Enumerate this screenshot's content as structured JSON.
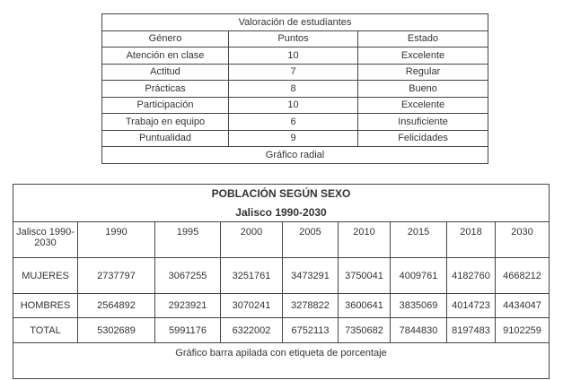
{
  "valoracion": {
    "title": "Valoración de estudiantes",
    "header": [
      "Género",
      "Puntos",
      "Estado"
    ],
    "rows": [
      [
        "Atención en clase",
        "10",
        "Excelente"
      ],
      [
        "Actitud",
        "7",
        "Regular"
      ],
      [
        "Prácticas",
        "8",
        "Bueno"
      ],
      [
        "Participación",
        "10",
        "Excelente"
      ],
      [
        "Trabajo en equipo",
        "6",
        "Insuficiente"
      ],
      [
        "Puntualidad",
        "9",
        "Felicidades"
      ]
    ],
    "footer": "Gráfico radial"
  },
  "poblacion": {
    "title": "POBLACIÓN SEGÚN SEXO",
    "subtitle": "Jalisco 1990-2030",
    "header": [
      "Jalisco 1990-2030",
      "1990",
      "1995",
      "2000",
      "2005",
      "2010",
      "2015",
      "2018",
      "2030"
    ],
    "rows": [
      [
        "MUJERES",
        "2737797",
        "3067255",
        "3251761",
        "3473291",
        "3750041",
        "4009761",
        "4182760",
        "4668212"
      ],
      [
        "HOMBRES",
        "2564892",
        "2923921",
        "3070241",
        "3278822",
        "3600641",
        "3835069",
        "4014723",
        "4434047"
      ],
      [
        "TOTAL",
        "5302689",
        "5991176",
        "6322002",
        "6752113",
        "7350682",
        "7844830",
        "8197483",
        "9102259"
      ]
    ],
    "footer": "Gráfico barra apilada con etiqueta de porcentaje"
  }
}
